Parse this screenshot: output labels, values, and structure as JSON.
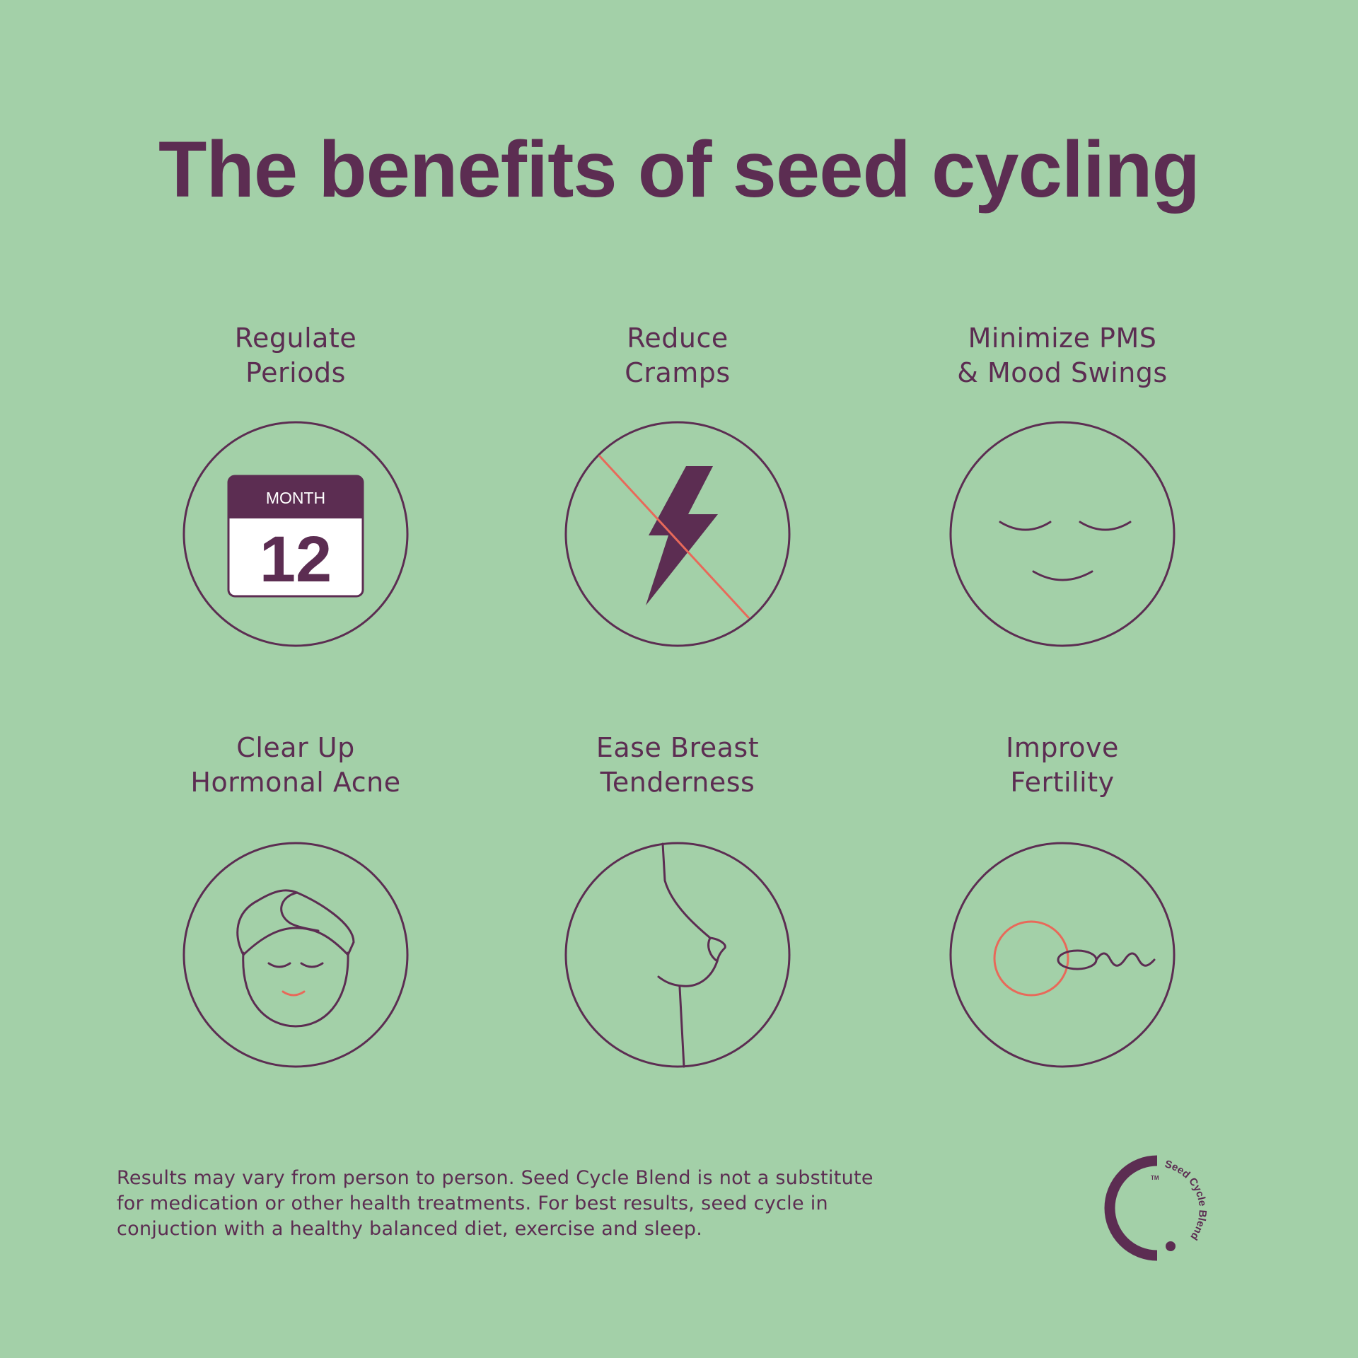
{
  "title": "The benefits of seed cycling",
  "benefits": [
    {
      "line1": "Regulate",
      "line2": "Periods",
      "icon": "calendar-icon"
    },
    {
      "line1": "Reduce",
      "line2": "Cramps",
      "icon": "no-lightning-icon"
    },
    {
      "line1": "Minimize PMS",
      "line2": "& Mood Swings",
      "icon": "calm-face-icon"
    },
    {
      "line1": "Clear Up",
      "line2": "Hormonal Acne",
      "icon": "towel-face-icon"
    },
    {
      "line1": "Ease Breast",
      "line2": "Tenderness",
      "icon": "breast-icon"
    },
    {
      "line1": "Improve",
      "line2": "Fertility",
      "icon": "egg-sperm-icon"
    }
  ],
  "calendar": {
    "month": "MONTH",
    "day": "12"
  },
  "footer": {
    "line1": "Results may vary from person to person. Seed Cycle Blend is not a substitute",
    "line2": "for medication or other health treatments. For best results, seed cycle in",
    "line3": "conjuction with a healthy balanced diet, exercise and sleep."
  },
  "logo": {
    "text": "Seed Cycle Blend",
    "tm": "TM"
  },
  "colors": {
    "background": "#a3d0a8",
    "primary": "#5c2d52",
    "accent": "#e8695a"
  }
}
